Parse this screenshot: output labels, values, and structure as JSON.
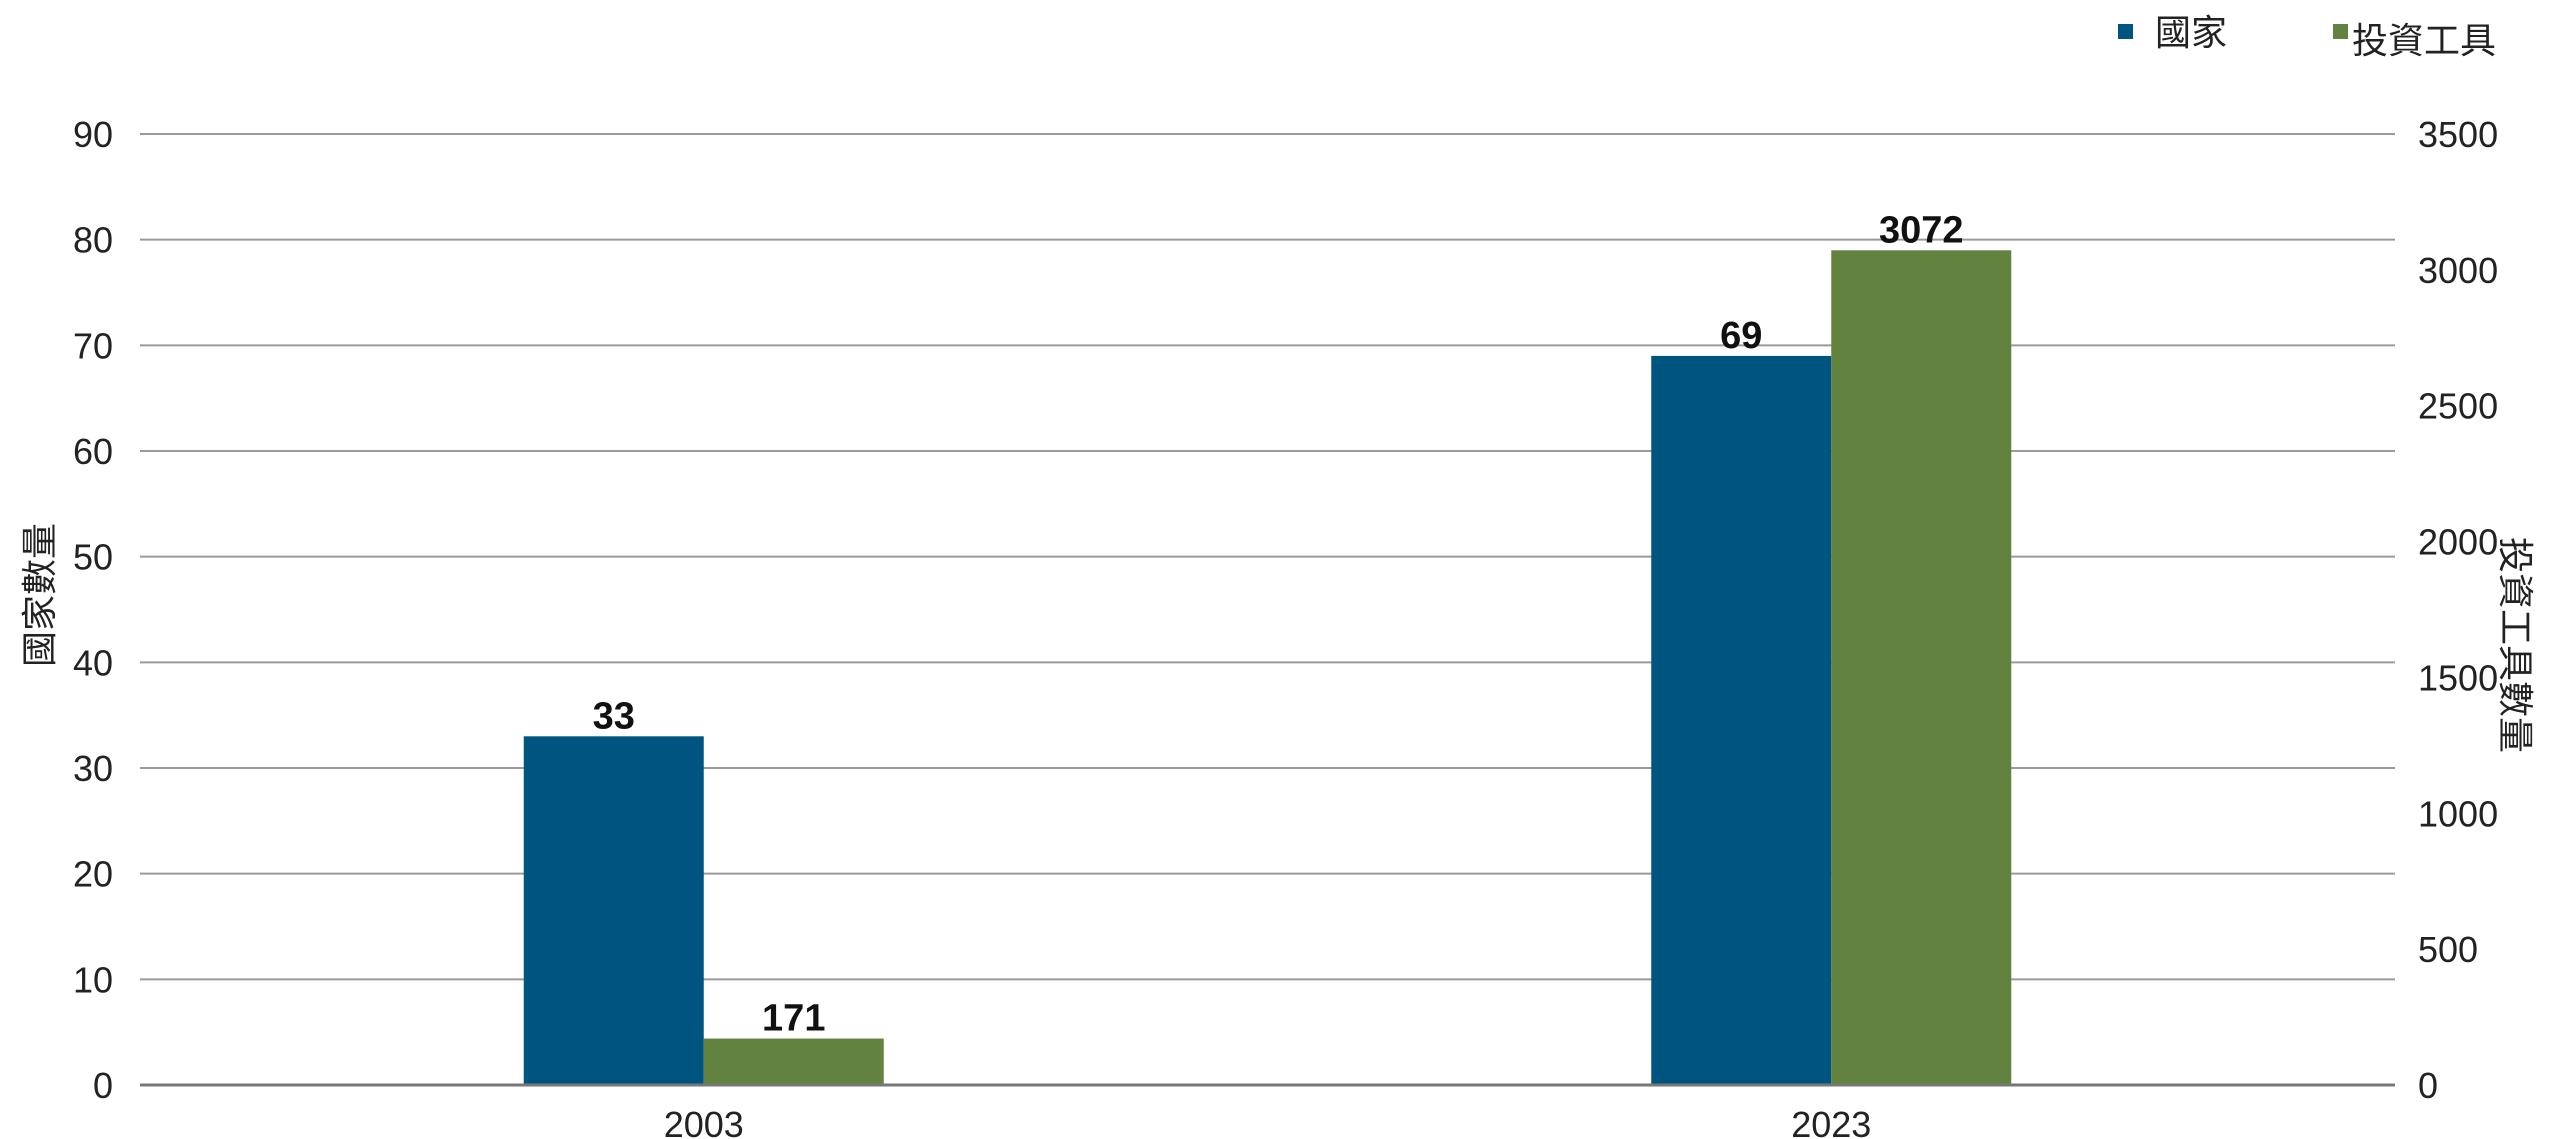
{
  "chart_data": {
    "type": "bar",
    "categories": [
      "2003",
      "2023"
    ],
    "series": [
      {
        "name": "國家",
        "axis": "left",
        "color": "#005580",
        "values": [
          33,
          69
        ]
      },
      {
        "name": "投資工具",
        "axis": "right",
        "color": "#62833f",
        "values": [
          171,
          3072
        ]
      }
    ],
    "ylabel": "國家數量",
    "y2label": "投資工具數量",
    "ylim": [
      0,
      90
    ],
    "y2lim": [
      0,
      3500
    ],
    "yticks": [
      "0",
      "10",
      "20",
      "30",
      "40",
      "50",
      "60",
      "70",
      "80",
      "90"
    ],
    "y2ticks": [
      "0",
      "500",
      "1000",
      "1500",
      "2000",
      "2500",
      "3000",
      "3500"
    ],
    "data_labels": [
      [
        "33",
        "69"
      ],
      [
        "171",
        "3072"
      ]
    ],
    "grid": true,
    "legend": "top-right"
  }
}
